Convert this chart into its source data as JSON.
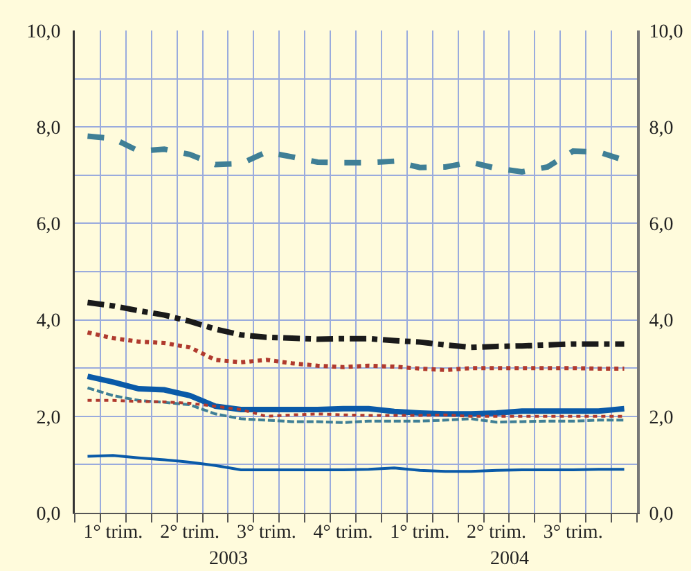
{
  "chart_data": {
    "type": "line",
    "categories": [
      null,
      "1° trim.",
      null,
      null,
      "2° trim.",
      null,
      null,
      "3° trim.",
      null,
      null,
      "4° trim.",
      null,
      null,
      "1° trim.",
      null,
      null,
      "2° trim.",
      null,
      null,
      "3° trim.",
      null,
      null
    ],
    "series": [
      {
        "color": "#3f7f96",
        "line_style": "dashed",
        "values": [
          7.81,
          7.76,
          7.5,
          7.54,
          7.43,
          7.22,
          7.24,
          7.48,
          7.38,
          7.27,
          7.26,
          7.26,
          7.29,
          7.16,
          7.17,
          7.27,
          7.14,
          7.07,
          7.17,
          7.5,
          7.48,
          7.31
        ]
      },
      {
        "color": "#1a1a1a",
        "line_style": "dashdot",
        "values": [
          4.36,
          4.29,
          4.19,
          4.1,
          3.97,
          3.81,
          3.69,
          3.64,
          3.62,
          3.6,
          3.61,
          3.61,
          3.57,
          3.54,
          3.48,
          3.43,
          3.45,
          3.46,
          3.48,
          3.5,
          3.5,
          3.5
        ]
      },
      {
        "color": "#b03a2e",
        "line_style": "dotted",
        "values": [
          3.74,
          3.62,
          3.55,
          3.52,
          3.43,
          3.17,
          3.12,
          3.17,
          3.1,
          3.05,
          3.02,
          3.05,
          3.03,
          2.99,
          2.96,
          3.0,
          3.0,
          3.0,
          3.0,
          3.0,
          2.99,
          2.99
        ]
      },
      {
        "color": "#0a5aa8",
        "line_style": "solid",
        "values": [
          2.83,
          2.71,
          2.57,
          2.55,
          2.43,
          2.21,
          2.14,
          2.14,
          2.14,
          2.14,
          2.16,
          2.16,
          2.1,
          2.07,
          2.05,
          2.05,
          2.07,
          2.11,
          2.11,
          2.11,
          2.11,
          2.16
        ]
      },
      {
        "color": "#3f7f96",
        "line_style": "dashed",
        "values": [
          2.59,
          2.43,
          2.33,
          2.29,
          2.24,
          2.05,
          1.95,
          1.92,
          1.89,
          1.89,
          1.87,
          1.9,
          1.9,
          1.9,
          1.92,
          1.95,
          1.88,
          1.89,
          1.9,
          1.9,
          1.92,
          1.92
        ]
      },
      {
        "color": "#b03a2e",
        "line_style": "dotted",
        "values": [
          2.33,
          2.33,
          2.31,
          2.3,
          2.27,
          2.21,
          2.14,
          2.0,
          2.03,
          2.05,
          2.03,
          2.02,
          2.02,
          2.02,
          2.03,
          2.0,
          2.0,
          2.0,
          2.0,
          2.0,
          2.0,
          2.0
        ]
      },
      {
        "color": "#0a5aa8",
        "line_style": "solid",
        "values": [
          1.17,
          1.19,
          1.14,
          1.1,
          1.05,
          0.98,
          0.89,
          0.89,
          0.89,
          0.89,
          0.89,
          0.9,
          0.93,
          0.88,
          0.86,
          0.86,
          0.88,
          0.89,
          0.89,
          0.89,
          0.9,
          0.9
        ]
      }
    ],
    "annotations": [
      "2003",
      "2004"
    ],
    "ylim": [
      0,
      10
    ],
    "yticks": [
      {
        "value": 0,
        "label": "0,0"
      },
      {
        "value": 1,
        "label": null
      },
      {
        "value": 2,
        "label": "2,0"
      },
      {
        "value": 3,
        "label": null
      },
      {
        "value": 4,
        "label": "4,0"
      },
      {
        "value": 5,
        "label": null
      },
      {
        "value": 6,
        "label": "6,0"
      },
      {
        "value": 7,
        "label": null
      },
      {
        "value": 8,
        "label": "8,0"
      },
      {
        "value": 9,
        "label": null
      },
      {
        "value": 10,
        "label": "10,0"
      }
    ],
    "y2lim": [
      0,
      10
    ],
    "y2ticks": [
      {
        "value": 0,
        "label": "0,0"
      },
      {
        "value": 1,
        "label": null
      },
      {
        "value": 2,
        "label": "2,0"
      },
      {
        "value": 3,
        "label": null
      },
      {
        "value": 4,
        "label": "4,0"
      },
      {
        "value": 5,
        "label": null
      },
      {
        "value": 6,
        "label": "6,0"
      },
      {
        "value": 7,
        "label": null
      },
      {
        "value": 8,
        "label": "8,0"
      },
      {
        "value": 9,
        "label": null
      },
      {
        "value": 10,
        "label": "10,0"
      }
    ],
    "grid": true,
    "marker": "none"
  }
}
